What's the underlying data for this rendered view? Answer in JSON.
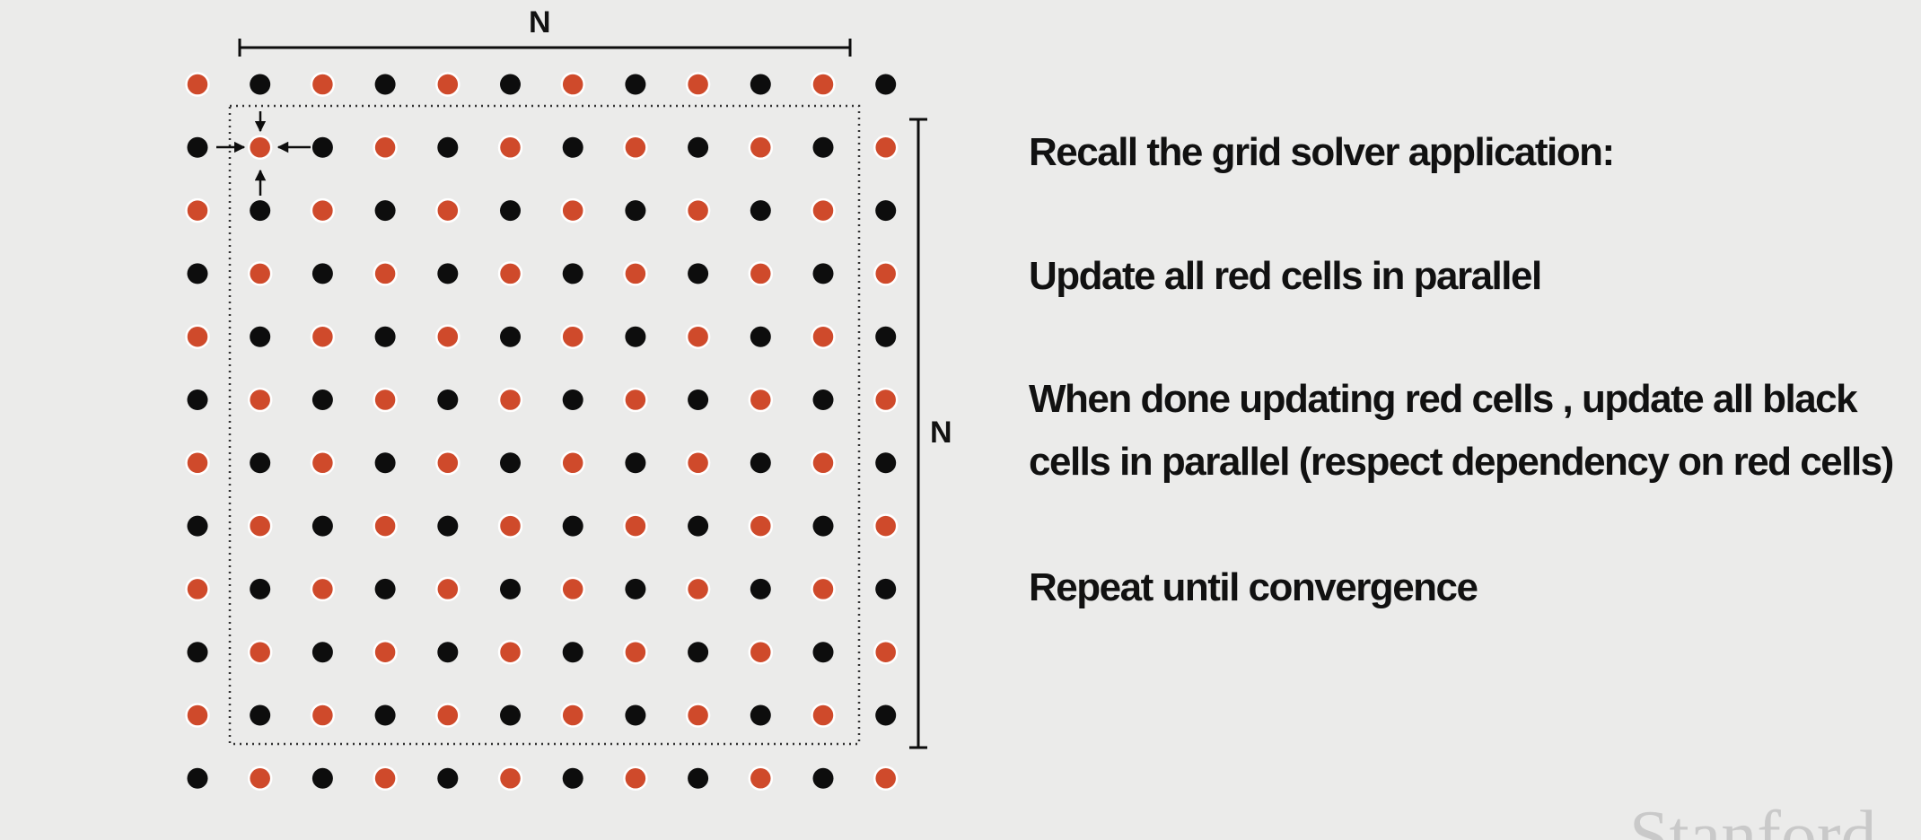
{
  "diagram": {
    "rows": 12,
    "cols": 12,
    "dot_colors": {
      "red": "#cf4a2b",
      "black": "#0d0d0d"
    },
    "dimension_label_top": "N",
    "dimension_label_right": "N"
  },
  "text": {
    "line1": "Recall the grid solver application:",
    "line2": "Update all red cells in parallel",
    "line3a": "When done updating red cells , update all black",
    "line3b": "cells in parallel (respect dependency on red cells)",
    "line4": "Repeat until convergence"
  },
  "watermark": "Stanford"
}
